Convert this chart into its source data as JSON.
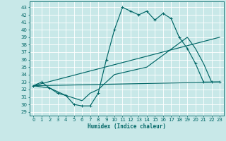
{
  "xlabel": "Humidex (Indice chaleur)",
  "bg_color": "#c8e8e8",
  "grid_color": "#ffffff",
  "line_color": "#006666",
  "xlim": [
    -0.5,
    23.5
  ],
  "ylim": [
    28.5,
    43.8
  ],
  "yticks": [
    29,
    30,
    31,
    32,
    33,
    34,
    35,
    36,
    37,
    38,
    39,
    40,
    41,
    42,
    43
  ],
  "xticks": [
    0,
    1,
    2,
    3,
    4,
    5,
    6,
    7,
    8,
    9,
    10,
    11,
    12,
    13,
    14,
    15,
    16,
    17,
    18,
    19,
    20,
    21,
    22,
    23
  ],
  "line1_x": [
    0,
    1,
    2,
    3,
    4,
    5,
    6,
    7,
    8,
    9,
    10,
    11,
    12,
    13,
    14,
    15,
    16,
    17,
    18,
    19,
    20,
    21,
    22,
    23
  ],
  "line1_y": [
    32.5,
    33.0,
    32.2,
    31.5,
    31.2,
    30.0,
    29.8,
    29.8,
    31.5,
    36.0,
    40.0,
    43.0,
    42.5,
    42.0,
    42.5,
    41.3,
    42.2,
    41.5,
    39.0,
    37.5,
    35.5,
    33.0,
    33.0,
    33.0
  ],
  "line2_x": [
    0,
    2,
    4,
    6,
    7,
    8,
    10,
    14,
    19,
    20,
    21,
    22,
    23
  ],
  "line2_y": [
    32.5,
    32.2,
    31.2,
    30.5,
    31.5,
    32.0,
    34.0,
    35.0,
    39.0,
    37.5,
    35.5,
    33.0,
    33.0
  ],
  "line3_x": [
    0,
    23
  ],
  "line3_y": [
    32.5,
    39.0
  ],
  "line4_x": [
    0,
    23
  ],
  "line4_y": [
    32.5,
    33.0
  ],
  "xlabel_fontsize": 5.5,
  "tick_fontsize": 5.0
}
